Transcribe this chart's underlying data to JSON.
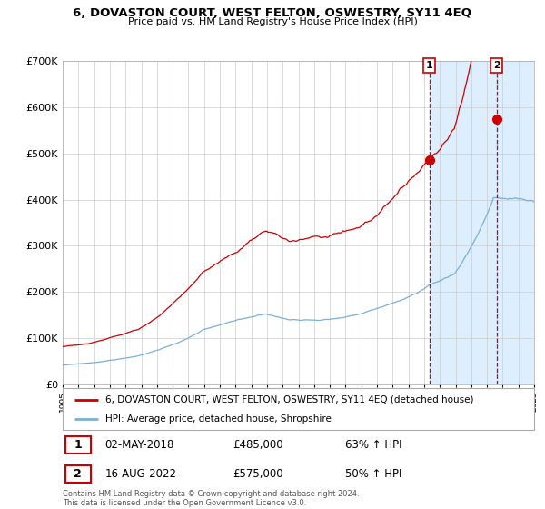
{
  "title": "6, DOVASTON COURT, WEST FELTON, OSWESTRY, SY11 4EQ",
  "subtitle": "Price paid vs. HM Land Registry's House Price Index (HPI)",
  "legend_line1": "6, DOVASTON COURT, WEST FELTON, OSWESTRY, SY11 4EQ (detached house)",
  "legend_line2": "HPI: Average price, detached house, Shropshire",
  "transaction1_date": "02-MAY-2018",
  "transaction1_price": 485000,
  "transaction1_label": "63% ↑ HPI",
  "transaction2_date": "16-AUG-2022",
  "transaction2_price": 575000,
  "transaction2_label": "50% ↑ HPI",
  "footnote": "Contains HM Land Registry data © Crown copyright and database right 2024.\nThis data is licensed under the Open Government Licence v3.0.",
  "red_color": "#cc0000",
  "blue_color": "#7ab0d4",
  "highlight_bg": "#ddeeff",
  "ylim": [
    0,
    700000
  ],
  "yticks": [
    0,
    100000,
    200000,
    300000,
    400000,
    500000,
    600000,
    700000
  ],
  "start_year": 1995,
  "end_year": 2025,
  "transaction1_year": 2018.33,
  "transaction2_year": 2022.62
}
